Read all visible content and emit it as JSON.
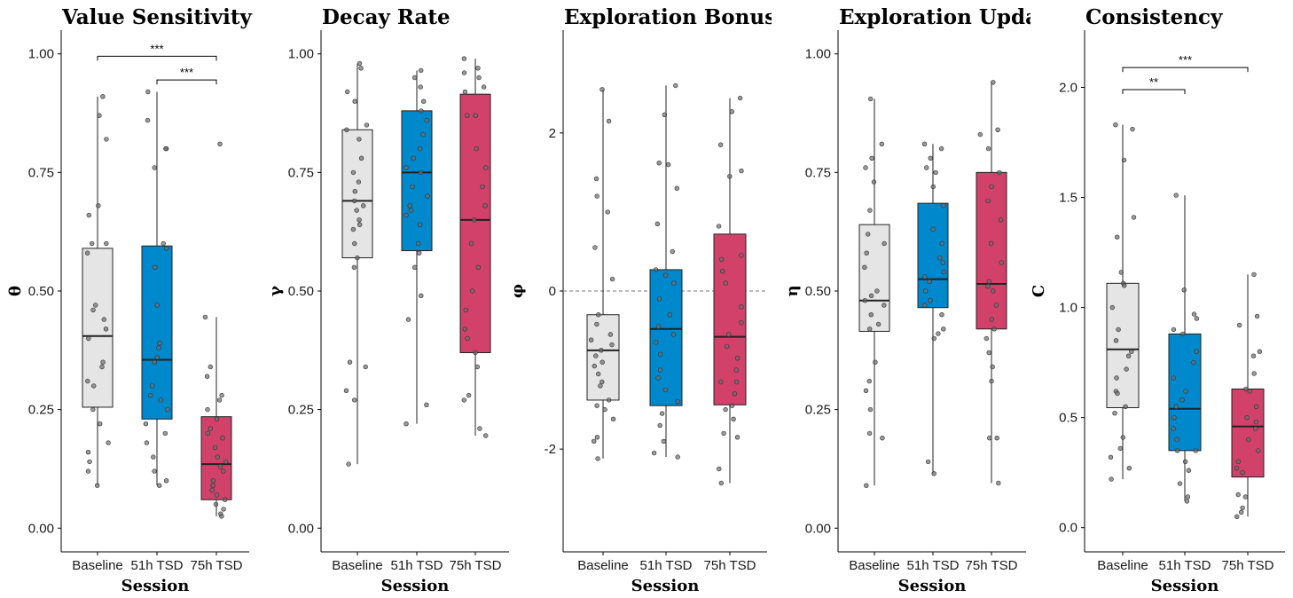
{
  "colors": {
    "Baseline": "#e5e5e5",
    "51h TSD": "#0088cc",
    "75h TSD": "#d1416a"
  },
  "chart_data": [
    {
      "type": "box",
      "title": "Value Sensitivity",
      "xlabel": "Session",
      "ylabel": "θ",
      "categories": [
        "Baseline",
        "51h TSD",
        "75h TSD"
      ],
      "ylim": [
        -0.05,
        1.05
      ],
      "yticks": [
        0.0,
        0.25,
        0.5,
        0.75,
        1.0
      ],
      "ytick_labels": [
        "0.00",
        "0.25",
        "0.50",
        "0.75",
        "1.00"
      ],
      "ref_line": null,
      "boxes": [
        {
          "min": 0.09,
          "q1": 0.255,
          "median": 0.405,
          "q3": 0.59,
          "max": 0.91
        },
        {
          "min": 0.09,
          "q1": 0.23,
          "median": 0.355,
          "q3": 0.595,
          "max": 0.92
        },
        {
          "min": 0.025,
          "q1": 0.06,
          "median": 0.135,
          "q3": 0.235,
          "max": 0.445
        }
      ],
      "points": [
        [
          0.91,
          0.87,
          0.82,
          0.68,
          0.66,
          0.6,
          0.6,
          0.58,
          0.47,
          0.46,
          0.44,
          0.42,
          0.4,
          0.35,
          0.34,
          0.31,
          0.3,
          0.25,
          0.22,
          0.18,
          0.16,
          0.14,
          0.12,
          0.09
        ],
        [
          0.92,
          0.86,
          0.8,
          0.8,
          0.76,
          0.6,
          0.59,
          0.55,
          0.47,
          0.39,
          0.38,
          0.36,
          0.35,
          0.3,
          0.28,
          0.27,
          0.25,
          0.22,
          0.2,
          0.18,
          0.15,
          0.12,
          0.1,
          0.09
        ],
        [
          0.81,
          0.445,
          0.34,
          0.32,
          0.28,
          0.27,
          0.25,
          0.23,
          0.21,
          0.2,
          0.19,
          0.17,
          0.15,
          0.14,
          0.13,
          0.12,
          0.1,
          0.09,
          0.08,
          0.07,
          0.06,
          0.05,
          0.04,
          0.03,
          0.025
        ]
      ],
      "annotations": [
        {
          "from": 0,
          "to": 2,
          "y": 0.995,
          "label": "***"
        },
        {
          "from": 1,
          "to": 2,
          "y": 0.945,
          "label": "***"
        }
      ]
    },
    {
      "type": "box",
      "title": "Decay Rate",
      "xlabel": "Session",
      "ylabel": "γ",
      "categories": [
        "Baseline",
        "51h TSD",
        "75h TSD"
      ],
      "ylim": [
        -0.05,
        1.05
      ],
      "yticks": [
        0.0,
        0.25,
        0.5,
        0.75,
        1.0
      ],
      "ytick_labels": [
        "0.00",
        "0.25",
        "0.50",
        "0.75",
        "1.00"
      ],
      "ref_line": null,
      "boxes": [
        {
          "min": 0.135,
          "q1": 0.57,
          "median": 0.69,
          "q3": 0.84,
          "max": 0.98
        },
        {
          "min": 0.22,
          "q1": 0.585,
          "median": 0.75,
          "q3": 0.88,
          "max": 0.965
        },
        {
          "min": 0.195,
          "q1": 0.37,
          "median": 0.65,
          "q3": 0.915,
          "max": 0.99
        }
      ],
      "points": [
        [
          0.98,
          0.97,
          0.92,
          0.9,
          0.85,
          0.84,
          0.82,
          0.78,
          0.75,
          0.73,
          0.71,
          0.69,
          0.68,
          0.67,
          0.65,
          0.64,
          0.63,
          0.6,
          0.57,
          0.55,
          0.35,
          0.34,
          0.29,
          0.27,
          0.135
        ],
        [
          0.965,
          0.95,
          0.93,
          0.9,
          0.88,
          0.86,
          0.83,
          0.8,
          0.78,
          0.76,
          0.75,
          0.72,
          0.7,
          0.68,
          0.67,
          0.66,
          0.64,
          0.6,
          0.58,
          0.55,
          0.49,
          0.44,
          0.26,
          0.22
        ],
        [
          0.99,
          0.97,
          0.96,
          0.95,
          0.93,
          0.92,
          0.87,
          0.87,
          0.8,
          0.76,
          0.72,
          0.68,
          0.65,
          0.6,
          0.55,
          0.5,
          0.46,
          0.42,
          0.4,
          0.37,
          0.34,
          0.28,
          0.27,
          0.21,
          0.195
        ]
      ],
      "annotations": []
    },
    {
      "type": "box",
      "title": "Exploration Bonus",
      "xlabel": "Session",
      "ylabel": "φ",
      "categories": [
        "Baseline",
        "51h TSD",
        "75h TSD"
      ],
      "ylim": [
        -3.3,
        3.3
      ],
      "yticks": [
        -2,
        0,
        2
      ],
      "ytick_labels": [
        "-2",
        "0",
        "2"
      ],
      "ref_line": 0,
      "boxes": [
        {
          "min": -2.12,
          "q1": -1.38,
          "median": -0.75,
          "q3": -0.3,
          "max": 2.55
        },
        {
          "min": -2.1,
          "q1": -1.45,
          "median": -0.48,
          "q3": 0.27,
          "max": 2.6
        },
        {
          "min": -2.43,
          "q1": -1.44,
          "median": -0.58,
          "q3": 0.72,
          "max": 2.44
        }
      ],
      "points": [
        [
          2.55,
          2.15,
          1.42,
          1.2,
          1.0,
          0.55,
          0.15,
          -0.3,
          -0.42,
          -0.55,
          -0.62,
          -0.68,
          -0.75,
          -0.82,
          -0.9,
          -0.95,
          -1.05,
          -1.15,
          -1.2,
          -1.38,
          -1.45,
          -1.5,
          -1.62,
          -1.85,
          -1.9,
          -2.12
        ],
        [
          2.6,
          2.23,
          1.62,
          1.6,
          1.3,
          0.85,
          0.5,
          0.27,
          0.2,
          0.1,
          -0.1,
          -0.3,
          -0.45,
          -0.55,
          -0.65,
          -0.8,
          -1.0,
          -1.1,
          -1.25,
          -1.4,
          -1.55,
          -1.7,
          -1.9,
          -2.05,
          -2.1
        ],
        [
          2.44,
          2.27,
          1.85,
          1.52,
          1.45,
          0.82,
          0.45,
          0.4,
          0.25,
          0.1,
          -0.2,
          -0.4,
          -0.55,
          -0.7,
          -0.85,
          -1.0,
          -1.15,
          -1.15,
          -1.3,
          -1.45,
          -1.5,
          -1.62,
          -1.8,
          -1.85,
          -2.25,
          -2.43
        ]
      ],
      "annotations": []
    },
    {
      "type": "box",
      "title": "Exploration Update",
      "xlabel": "Session",
      "ylabel": "η",
      "categories": [
        "Baseline",
        "51h TSD",
        "75h TSD"
      ],
      "ylim": [
        -0.05,
        1.05
      ],
      "yticks": [
        0.0,
        0.25,
        0.5,
        0.75,
        1.0
      ],
      "ytick_labels": [
        "0.00",
        "0.25",
        "0.50",
        "0.75",
        "1.00"
      ],
      "ref_line": null,
      "boxes": [
        {
          "min": 0.09,
          "q1": 0.415,
          "median": 0.48,
          "q3": 0.64,
          "max": 0.905
        },
        {
          "min": 0.115,
          "q1": 0.465,
          "median": 0.525,
          "q3": 0.685,
          "max": 0.81
        },
        {
          "min": 0.095,
          "q1": 0.42,
          "median": 0.515,
          "q3": 0.75,
          "max": 0.94
        }
      ],
      "points": [
        [
          0.905,
          0.81,
          0.78,
          0.76,
          0.73,
          0.67,
          0.62,
          0.6,
          0.58,
          0.55,
          0.5,
          0.49,
          0.48,
          0.47,
          0.45,
          0.43,
          0.42,
          0.35,
          0.31,
          0.29,
          0.25,
          0.2,
          0.19,
          0.09
        ],
        [
          0.81,
          0.8,
          0.78,
          0.76,
          0.75,
          0.72,
          0.68,
          0.63,
          0.6,
          0.57,
          0.56,
          0.54,
          0.53,
          0.52,
          0.5,
          0.48,
          0.47,
          0.45,
          0.42,
          0.41,
          0.4,
          0.14,
          0.115
        ],
        [
          0.94,
          0.84,
          0.83,
          0.8,
          0.75,
          0.72,
          0.69,
          0.65,
          0.6,
          0.56,
          0.52,
          0.51,
          0.5,
          0.47,
          0.44,
          0.42,
          0.4,
          0.37,
          0.34,
          0.31,
          0.19,
          0.19,
          0.095
        ]
      ],
      "annotations": []
    },
    {
      "type": "box",
      "title": "Consistency",
      "xlabel": "Session",
      "ylabel": "C",
      "categories": [
        "Baseline",
        "51h TSD",
        "75h TSD"
      ],
      "ylim": [
        -0.11,
        2.26
      ],
      "yticks": [
        0.0,
        0.5,
        1.0,
        1.5,
        2.0
      ],
      "ytick_labels": [
        "0.0",
        "0.5",
        "1.0",
        "1.5",
        "2.0"
      ],
      "ref_line": null,
      "boxes": [
        {
          "min": 0.22,
          "q1": 0.545,
          "median": 0.81,
          "q3": 1.11,
          "max": 1.83
        },
        {
          "min": 0.12,
          "q1": 0.35,
          "median": 0.54,
          "q3": 0.88,
          "max": 1.51
        },
        {
          "min": 0.05,
          "q1": 0.23,
          "median": 0.46,
          "q3": 0.63,
          "max": 1.15
        }
      ],
      "points": [
        [
          1.83,
          1.81,
          1.67,
          1.41,
          1.32,
          1.16,
          1.11,
          1.1,
          1.0,
          0.9,
          0.85,
          0.8,
          0.78,
          0.72,
          0.68,
          0.62,
          0.61,
          0.55,
          0.52,
          0.41,
          0.36,
          0.32,
          0.27,
          0.22
        ],
        [
          1.51,
          1.08,
          0.97,
          0.95,
          0.9,
          0.88,
          0.8,
          0.75,
          0.68,
          0.62,
          0.58,
          0.55,
          0.5,
          0.45,
          0.4,
          0.35,
          0.35,
          0.3,
          0.26,
          0.2,
          0.14,
          0.12
        ],
        [
          1.15,
          0.96,
          0.92,
          0.8,
          0.78,
          0.7,
          0.63,
          0.62,
          0.55,
          0.5,
          0.48,
          0.45,
          0.4,
          0.35,
          0.3,
          0.27,
          0.25,
          0.15,
          0.14,
          0.09,
          0.07,
          0.05
        ]
      ],
      "annotations": [
        {
          "from": 0,
          "to": 2,
          "y": 2.09,
          "label": "***"
        },
        {
          "from": 0,
          "to": 1,
          "y": 1.99,
          "label": "**"
        }
      ]
    }
  ]
}
